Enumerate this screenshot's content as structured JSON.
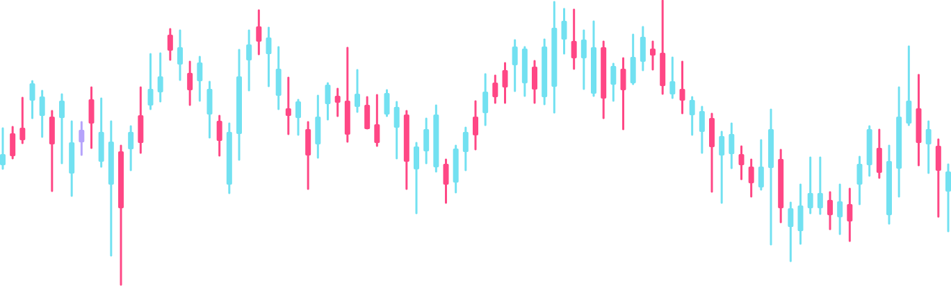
{
  "chart_data": {
    "type": "candlestick",
    "ylim": [
      0,
      412
    ],
    "series": [
      {
        "high": [
          227,
          229,
          271,
          295,
          281,
          252,
          276,
          237,
          236,
          286,
          270,
          237,
          202,
          230,
          286,
          334,
          335,
          370,
          368,
          323,
          330,
          294,
          245,
          234,
          340,
          368,
          397,
          372,
          344,
          300,
          268,
          236,
          274,
          292,
          284,
          343,
          311,
          272,
          275,
          282,
          265,
          252,
          206,
          241,
          260,
          182,
          202,
          228,
          266,
          305,
          303,
          321,
          354,
          344,
          324,
          355,
          409,
          399,
          398,
          368,
          381,
          352,
          320,
          328,
          362,
          373,
          352,
          411,
          329,
          323,
          272,
          258,
          248,
          222,
          234,
          201,
          182,
          210,
          254,
          196,
          120,
          146,
          185,
          185,
          135,
          146,
          140,
          186,
          230,
          225,
          202,
          286,
          345,
          304,
          237,
          211,
          175
        ],
        "low": [
          169,
          184,
          206,
          242,
          215,
          137,
          177,
          130,
          189,
          199,
          172,
          44,
          2,
          167,
          192,
          255,
          266,
          326,
          297,
          261,
          267,
          214,
          188,
          134,
          182,
          282,
          334,
          288,
          255,
          219,
          218,
          140,
          185,
          240,
          245,
          208,
          251,
          227,
          202,
          245,
          184,
          140,
          105,
          177,
          165,
          120,
          135,
          167,
          197,
          232,
          264,
          264,
          281,
          274,
          264,
          262,
          250,
          335,
          313,
          284,
          274,
          242,
          267,
          226,
          291,
          311,
          312,
          277,
          271,
          249,
          218,
          192,
          136,
          120,
          170,
          154,
          129,
          139,
          60,
          92,
          36,
          61,
          105,
          104,
          82,
          75,
          65,
          118,
          159,
          156,
          90,
          129,
          232,
          174,
          163,
          100,
          79
        ],
        "open": [
          174,
          220,
          228,
          267,
          245,
          244,
          242,
          162,
          207,
          269,
          179,
          146,
          194,
          197,
          246,
          260,
          279,
          362,
          319,
          307,
          295,
          247,
          238,
          146,
          219,
          325,
          374,
          334,
          274,
          256,
          242,
          226,
          204,
          262,
          274,
          267,
          258,
          261,
          233,
          247,
          228,
          247,
          168,
          194,
          171,
          176,
          149,
          193,
          244,
          249,
          293,
          311,
          318,
          292,
          316,
          272,
          287,
          355,
          353,
          328,
          277,
          344,
          290,
          313,
          292,
          323,
          342,
          336,
          276,
          284,
          246,
          222,
          242,
          188,
          190,
          190,
          172,
          142,
          170,
          183,
          85,
          79,
          112,
          112,
          124,
          99,
          118,
          146,
          174,
          199,
          102,
          169,
          234,
          256,
          204,
          202,
          136
        ],
        "close": [
          190,
          187,
          210,
          292,
          273,
          204,
          267,
          207,
          225,
          234,
          222,
          208,
          112,
          222,
          206,
          284,
          302,
          339,
          344,
          282,
          322,
          284,
          209,
          222,
          302,
          348,
          352,
          358,
          313,
          245,
          266,
          188,
          244,
          290,
          264,
          218,
          277,
          226,
          206,
          278,
          258,
          179,
          201,
          226,
          247,
          146,
          198,
          222,
          217,
          280,
          272,
          286,
          345,
          342,
          283,
          345,
          372,
          382,
          328,
          355,
          344,
          270,
          317,
          282,
          330,
          359,
          332,
          288,
          295,
          267,
          268,
          252,
          200,
          216,
          219,
          174,
          148,
          172,
          226,
          112,
          112,
          116,
          134,
          134,
          102,
          122,
          93,
          176,
          226,
          163,
          180,
          244,
          267,
          206,
          226,
          166,
          165
        ],
        "colors": [
          "#72e1f1",
          "#ff4785",
          "#ff4785",
          "#72e1f1",
          "#72e1f1",
          "#ff4785",
          "#72e1f1",
          "#72e1f1",
          "#b5a3fb",
          "#ff4785",
          "#72e1f1",
          "#72e1f1",
          "#ff4785",
          "#72e1f1",
          "#ff4785",
          "#72e1f1",
          "#72e1f1",
          "#ff4785",
          "#72e1f1",
          "#ff4785",
          "#72e1f1",
          "#72e1f1",
          "#ff4785",
          "#72e1f1",
          "#72e1f1",
          "#72e1f1",
          "#ff4785",
          "#72e1f1",
          "#72e1f1",
          "#ff4785",
          "#72e1f1",
          "#ff4785",
          "#72e1f1",
          "#72e1f1",
          "#ff4785",
          "#ff4785",
          "#72e1f1",
          "#ff4785",
          "#ff4785",
          "#72e1f1",
          "#72e1f1",
          "#ff4785",
          "#72e1f1",
          "#72e1f1",
          "#72e1f1",
          "#ff4785",
          "#72e1f1",
          "#72e1f1",
          "#ff4785",
          "#72e1f1",
          "#ff4785",
          "#ff4785",
          "#72e1f1",
          "#72e1f1",
          "#ff4785",
          "#72e1f1",
          "#72e1f1",
          "#72e1f1",
          "#ff4785",
          "#72e1f1",
          "#72e1f1",
          "#ff4785",
          "#72e1f1",
          "#ff4785",
          "#72e1f1",
          "#72e1f1",
          "#ff4785",
          "#ff4785",
          "#72e1f1",
          "#ff4785",
          "#72e1f1",
          "#72e1f1",
          "#ff4785",
          "#72e1f1",
          "#72e1f1",
          "#ff4785",
          "#ff4785",
          "#72e1f1",
          "#72e1f1",
          "#ff4785",
          "#72e1f1",
          "#72e1f1",
          "#72e1f1",
          "#72e1f1",
          "#ff4785",
          "#72e1f1",
          "#ff4785",
          "#72e1f1",
          "#72e1f1",
          "#ff4785",
          "#72e1f1",
          "#72e1f1",
          "#72e1f1",
          "#ff4785",
          "#72e1f1",
          "#ff4785",
          "#72e1f1"
        ]
      }
    ]
  }
}
